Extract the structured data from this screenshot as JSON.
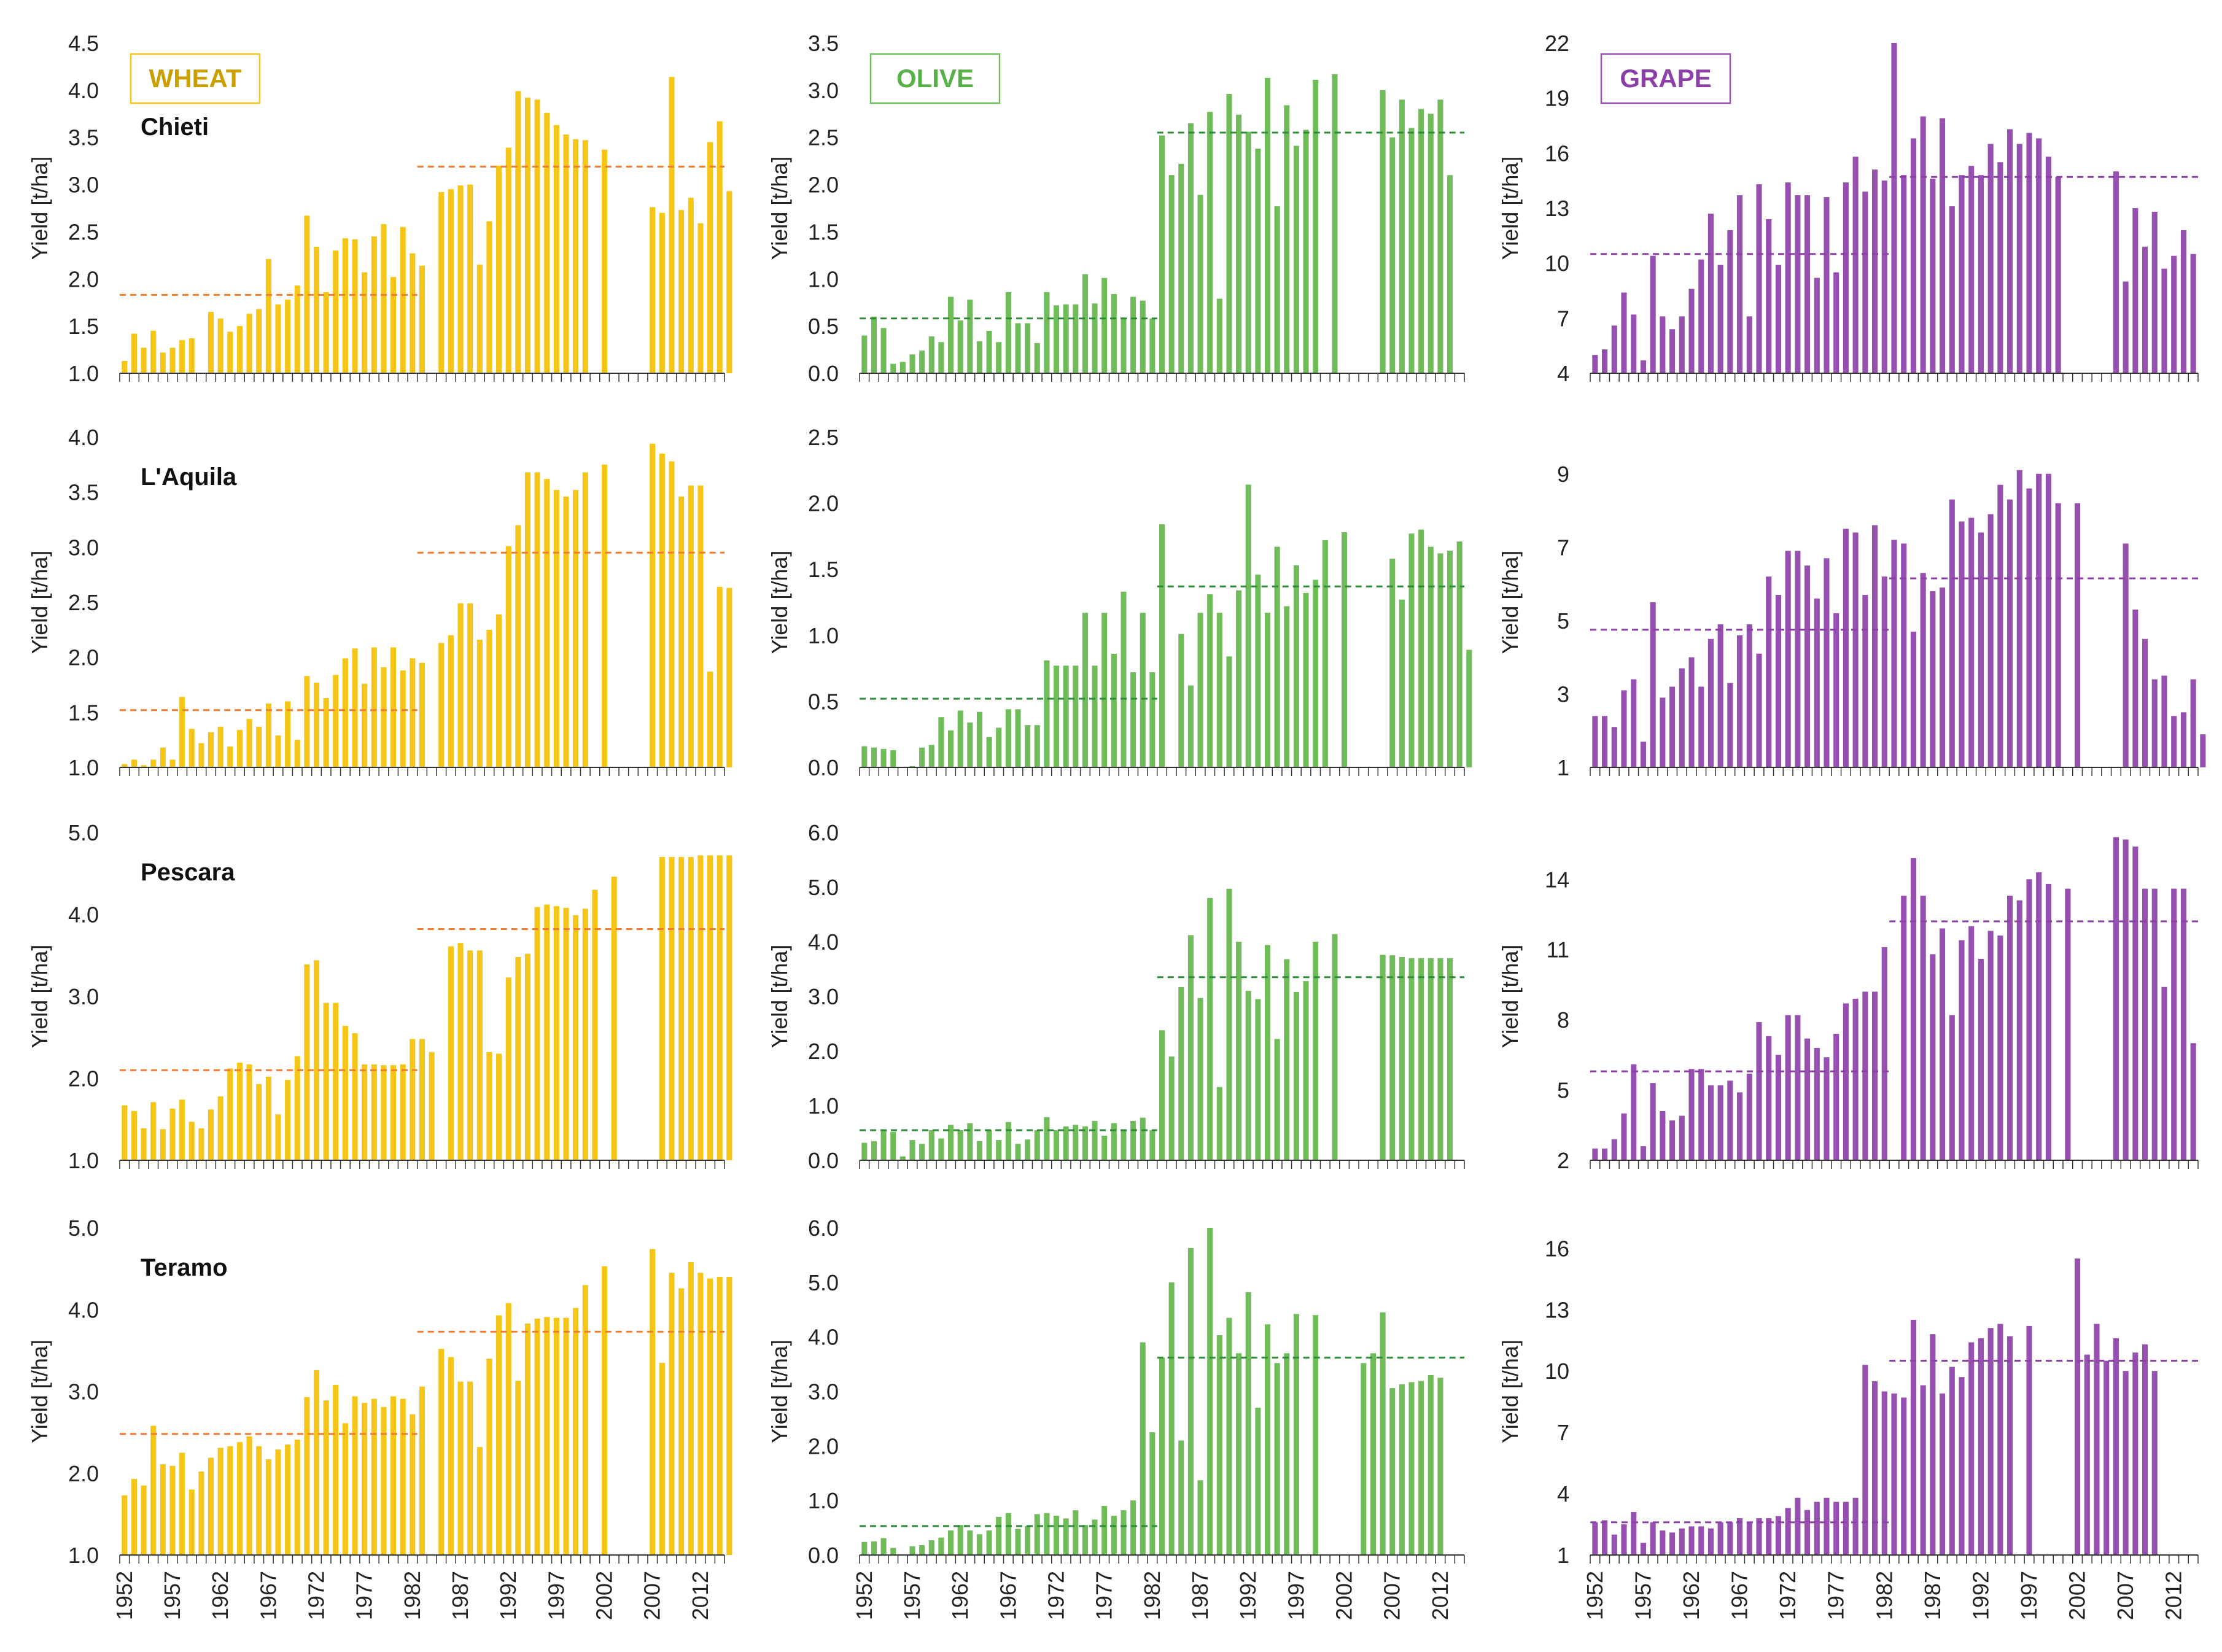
{
  "chart_data": {
    "type": "bar",
    "ylabel": "Yield [t/ha]",
    "x_tick_labels": [
      "1952",
      "1957",
      "1962",
      "1967",
      "1972",
      "1977",
      "1982",
      "1987",
      "1992",
      "1997",
      "2002",
      "2007",
      "2012"
    ],
    "years_first": 1952,
    "years_last": 2014,
    "crops": [
      {
        "name": "WHEAT",
        "color": "#F5C518",
        "mean_color": "#EE7D31",
        "label_color": "#C9A000"
      },
      {
        "name": "OLIVE",
        "color": "#70BC5B",
        "mean_color": "#2E8B37",
        "label_color": "#58B048"
      },
      {
        "name": "GRAPE",
        "color": "#9550B0",
        "mean_color": "#8B3FA7",
        "label_color": "#8B3FA7"
      }
    ],
    "provinces": [
      "Chieti",
      "L'Aquila",
      "Pescara",
      "Teramo"
    ],
    "panels": [
      {
        "crop": "WHEAT",
        "province": "Chieti",
        "ylim": [
          1.0,
          4.5
        ],
        "yticks": [
          "1.0",
          "1.5",
          "2.0",
          "2.5",
          "3.0",
          "3.5",
          "4.0",
          "4.5"
        ],
        "means": [
          1.83,
          3.19
        ],
        "values": [
          1.13,
          1.42,
          1.27,
          1.45,
          1.22,
          1.27,
          1.35,
          1.37,
          null,
          1.65,
          1.58,
          1.44,
          1.5,
          1.63,
          1.68,
          2.21,
          1.73,
          1.78,
          1.93,
          2.67,
          2.34,
          1.86,
          2.3,
          2.43,
          2.42,
          2.07,
          2.45,
          2.58,
          2.02,
          2.55,
          2.27,
          2.14,
          null,
          2.92,
          2.95,
          2.99,
          3.0,
          2.15,
          2.61,
          3.2,
          3.39,
          3.99,
          3.92,
          3.9,
          3.76,
          3.63,
          3.53,
          3.48,
          3.47,
          null,
          3.37,
          null,
          null,
          null,
          null,
          2.76,
          2.7,
          4.14,
          2.73,
          2.86,
          2.59,
          3.45,
          3.67,
          2.93
        ]
      },
      {
        "crop": "OLIVE",
        "province": "Chieti",
        "ylim": [
          0.0,
          3.5
        ],
        "yticks": [
          "0.0",
          "0.5",
          "1.0",
          "1.5",
          "2.0",
          "2.5",
          "3.0",
          "3.5"
        ],
        "means": [
          0.58,
          2.55
        ],
        "values": [
          0.4,
          0.6,
          0.48,
          0.1,
          0.12,
          0.2,
          0.24,
          0.39,
          0.33,
          0.81,
          0.56,
          0.78,
          0.34,
          0.45,
          0.33,
          0.86,
          0.53,
          0.53,
          0.32,
          0.86,
          0.72,
          0.73,
          0.73,
          1.05,
          0.74,
          1.01,
          0.84,
          0.59,
          0.81,
          0.77,
          0.58,
          2.52,
          2.1,
          2.22,
          2.65,
          1.89,
          2.77,
          0.79,
          2.96,
          2.74,
          2.56,
          2.38,
          3.13,
          1.77,
          2.84,
          2.41,
          2.58,
          3.11,
          null,
          3.17,
          null,
          null,
          null,
          null,
          3.0,
          2.5,
          2.9,
          2.6,
          2.8,
          2.75,
          2.9,
          2.1
        ]
      },
      {
        "crop": "GRAPE",
        "province": "Chieti",
        "ylim": [
          4,
          22
        ],
        "yticks": [
          "4",
          "7",
          "10",
          "13",
          "16",
          "19",
          "22"
        ],
        "means": [
          10.5,
          14.7
        ],
        "values": [
          5.0,
          5.3,
          6.6,
          8.4,
          7.2,
          4.7,
          10.4,
          7.1,
          6.4,
          7.1,
          8.6,
          10.2,
          12.7,
          9.9,
          11.8,
          13.7,
          7.1,
          14.3,
          12.4,
          9.9,
          14.4,
          13.7,
          13.7,
          9.2,
          13.6,
          9.5,
          14.4,
          15.8,
          13.9,
          15.1,
          14.5,
          22.0,
          14.8,
          16.8,
          18.0,
          14.6,
          17.9,
          13.1,
          14.8,
          15.3,
          14.8,
          16.5,
          15.5,
          17.3,
          16.5,
          17.1,
          16.8,
          15.8,
          14.7,
          null,
          null,
          null,
          null,
          null,
          15.0,
          9.0,
          13.0,
          10.9,
          12.8,
          9.7,
          10.4,
          11.8,
          10.5
        ]
      },
      {
        "crop": "WHEAT",
        "province": "L'Aquila",
        "ylim": [
          1.0,
          4.0
        ],
        "yticks": [
          "1.0",
          "1.5",
          "2.0",
          "2.5",
          "3.0",
          "3.5",
          "4.0"
        ],
        "means": [
          1.52,
          2.95
        ],
        "values": [
          1.03,
          1.07,
          1.02,
          1.07,
          1.18,
          1.07,
          1.64,
          1.35,
          1.22,
          1.32,
          1.37,
          1.19,
          1.34,
          1.44,
          1.37,
          1.58,
          1.29,
          1.6,
          1.25,
          1.83,
          1.77,
          1.63,
          1.84,
          1.99,
          2.08,
          1.76,
          2.09,
          1.91,
          2.09,
          1.88,
          1.99,
          1.95,
          null,
          2.13,
          2.2,
          2.49,
          2.49,
          2.16,
          2.25,
          2.39,
          3.01,
          3.2,
          3.68,
          3.68,
          3.62,
          3.52,
          3.46,
          3.52,
          3.68,
          null,
          3.75,
          null,
          null,
          null,
          null,
          3.94,
          3.85,
          3.78,
          3.46,
          3.56,
          3.56,
          1.87,
          2.64,
          2.63
        ]
      },
      {
        "crop": "OLIVE",
        "province": "L'Aquila",
        "ylim": [
          0.0,
          2.5
        ],
        "yticks": [
          "0.0",
          "0.5",
          "1.0",
          "1.5",
          "2.0",
          "2.5"
        ],
        "means": [
          0.52,
          1.37
        ],
        "values": [
          0.16,
          0.15,
          0.14,
          0.13,
          null,
          0.01,
          0.15,
          0.17,
          0.38,
          0.28,
          0.43,
          0.34,
          0.42,
          0.23,
          0.3,
          0.44,
          0.44,
          0.32,
          0.32,
          0.81,
          0.77,
          0.77,
          0.77,
          1.17,
          0.77,
          1.17,
          0.86,
          1.33,
          0.72,
          1.17,
          0.72,
          1.84,
          null,
          1.01,
          0.62,
          1.17,
          1.31,
          1.17,
          0.84,
          1.34,
          2.14,
          1.46,
          1.17,
          1.67,
          1.22,
          1.53,
          1.32,
          1.42,
          1.72,
          null,
          1.78,
          null,
          null,
          null,
          null,
          1.58,
          1.27,
          1.77,
          1.8,
          1.67,
          1.62,
          1.64,
          1.71,
          0.89
        ]
      },
      {
        "crop": "GRAPE",
        "province": "L'Aquila",
        "ylim": [
          1,
          10
        ],
        "yticks": [
          "1",
          "3",
          "5",
          "7",
          "9"
        ],
        "means": [
          4.75,
          6.15
        ],
        "values": [
          2.4,
          2.4,
          2.1,
          3.1,
          3.4,
          1.7,
          5.5,
          2.9,
          3.2,
          3.7,
          4.0,
          3.2,
          4.5,
          4.9,
          3.3,
          4.6,
          4.9,
          4.1,
          6.2,
          5.7,
          6.9,
          6.9,
          6.5,
          5.6,
          6.7,
          5.2,
          7.5,
          7.4,
          5.7,
          7.6,
          6.2,
          7.2,
          7.1,
          4.7,
          6.3,
          5.8,
          5.9,
          8.3,
          7.7,
          7.8,
          7.4,
          7.9,
          8.7,
          8.3,
          9.1,
          8.6,
          9.0,
          9.0,
          8.2,
          null,
          8.2,
          null,
          null,
          null,
          null,
          7.1,
          5.3,
          4.5,
          3.4,
          3.5,
          2.4,
          2.5,
          3.4,
          1.9
        ]
      },
      {
        "crop": "WHEAT",
        "province": "Pescara",
        "ylim": [
          1.0,
          5.0
        ],
        "yticks": [
          "1.0",
          "2.0",
          "3.0",
          "4.0",
          "5.0"
        ],
        "means": [
          2.1,
          3.82
        ],
        "values": [
          1.67,
          1.6,
          1.39,
          1.71,
          1.38,
          1.63,
          1.74,
          1.47,
          1.39,
          1.62,
          1.78,
          2.12,
          2.19,
          2.17,
          1.93,
          2.02,
          1.56,
          1.98,
          2.27,
          3.39,
          3.44,
          2.92,
          2.92,
          2.64,
          2.55,
          2.17,
          2.17,
          2.16,
          2.16,
          2.17,
          2.48,
          2.48,
          2.32,
          null,
          3.61,
          3.65,
          3.56,
          3.56,
          2.32,
          2.3,
          3.23,
          3.48,
          3.52,
          4.09,
          4.12,
          4.1,
          4.08,
          3.99,
          4.07,
          4.3,
          null,
          4.46,
          null,
          null,
          null,
          null,
          4.7,
          4.7,
          4.7,
          4.7,
          4.72,
          4.72,
          4.72,
          4.72
        ]
      },
      {
        "crop": "OLIVE",
        "province": "Pescara",
        "ylim": [
          0.0,
          6.0
        ],
        "yticks": [
          "0.0",
          "1.0",
          "2.0",
          "3.0",
          "4.0",
          "5.0",
          "6.0"
        ],
        "means": [
          0.55,
          3.35
        ],
        "values": [
          0.32,
          0.35,
          0.55,
          0.52,
          0.07,
          0.37,
          0.3,
          0.55,
          0.4,
          0.65,
          0.55,
          0.68,
          0.35,
          0.55,
          0.37,
          0.7,
          0.3,
          0.38,
          0.55,
          0.79,
          0.55,
          0.62,
          0.65,
          0.62,
          0.72,
          0.45,
          0.68,
          0.55,
          0.72,
          0.78,
          0.55,
          2.38,
          1.9,
          3.17,
          4.12,
          2.97,
          4.8,
          1.34,
          4.97,
          4.0,
          3.1,
          2.95,
          3.94,
          2.22,
          3.68,
          3.08,
          3.28,
          4.0,
          null,
          4.14,
          null,
          null,
          null,
          null,
          3.76,
          3.75,
          3.72,
          3.7,
          3.7,
          3.7,
          3.7,
          3.7
        ]
      },
      {
        "crop": "GRAPE",
        "province": "Pescara",
        "ylim": [
          2,
          16
        ],
        "yticks": [
          "2",
          "5",
          "8",
          "11",
          "14"
        ],
        "means": [
          5.8,
          12.2
        ],
        "values": [
          2.5,
          2.5,
          2.9,
          4.0,
          6.1,
          2.6,
          5.3,
          4.1,
          3.7,
          3.9,
          5.9,
          5.9,
          5.2,
          5.2,
          5.4,
          4.9,
          5.7,
          7.9,
          7.3,
          6.5,
          8.2,
          8.2,
          7.2,
          6.8,
          6.4,
          7.4,
          8.7,
          8.9,
          9.2,
          9.2,
          11.1,
          null,
          13.3,
          14.9,
          13.3,
          10.8,
          11.9,
          8.2,
          11.4,
          12.0,
          10.6,
          11.8,
          11.6,
          13.3,
          13.1,
          14.0,
          14.3,
          13.8,
          null,
          13.6,
          null,
          null,
          null,
          null,
          15.8,
          15.7,
          15.4,
          13.6,
          13.6,
          9.4,
          13.6,
          13.6,
          7.0
        ]
      },
      {
        "crop": "WHEAT",
        "province": "Teramo",
        "ylim": [
          1.0,
          5.0
        ],
        "yticks": [
          "1.0",
          "2.0",
          "3.0",
          "4.0",
          "5.0"
        ],
        "means": [
          2.48,
          3.73
        ],
        "values": [
          1.73,
          1.93,
          1.85,
          2.58,
          2.11,
          2.09,
          2.25,
          1.8,
          2.02,
          2.19,
          2.31,
          2.33,
          2.38,
          2.45,
          2.33,
          2.17,
          2.29,
          2.35,
          2.41,
          2.93,
          3.26,
          2.89,
          3.08,
          2.61,
          2.94,
          2.86,
          2.91,
          2.81,
          2.94,
          2.91,
          2.72,
          3.06,
          null,
          3.52,
          3.42,
          3.12,
          3.12,
          2.32,
          3.4,
          3.93,
          4.08,
          3.13,
          3.83,
          3.89,
          3.91,
          3.9,
          3.9,
          4.02,
          4.3,
          null,
          4.53,
          null,
          null,
          null,
          null,
          4.74,
          3.35,
          4.45,
          4.26,
          4.58,
          4.45,
          4.38,
          4.4,
          4.4
        ]
      },
      {
        "crop": "OLIVE",
        "province": "Teramo",
        "ylim": [
          0.0,
          6.0
        ],
        "yticks": [
          "0.0",
          "1.0",
          "2.0",
          "3.0",
          "4.0",
          "5.0",
          "6.0"
        ],
        "means": [
          0.53,
          3.62
        ],
        "values": [
          0.24,
          0.25,
          0.31,
          0.13,
          0.01,
          0.16,
          0.18,
          0.27,
          0.32,
          0.45,
          0.55,
          0.45,
          0.38,
          0.45,
          0.7,
          0.77,
          0.48,
          0.53,
          0.75,
          0.77,
          0.72,
          0.67,
          0.82,
          0.55,
          0.65,
          0.9,
          0.72,
          0.82,
          1.0,
          3.9,
          2.25,
          3.62,
          5.0,
          2.1,
          5.63,
          1.37,
          6.0,
          4.03,
          4.35,
          3.7,
          4.82,
          2.7,
          4.23,
          3.52,
          3.7,
          4.42,
          null,
          4.4,
          null,
          null,
          null,
          null,
          3.52,
          3.7,
          4.45,
          3.06,
          3.13,
          3.17,
          3.19,
          3.3,
          3.25
        ]
      },
      {
        "crop": "GRAPE",
        "province": "Teramo",
        "ylim": [
          1,
          17
        ],
        "yticks": [
          "1",
          "4",
          "7",
          "10",
          "13",
          "16"
        ],
        "means": [
          2.6,
          10.5
        ],
        "values": [
          2.6,
          2.7,
          2.0,
          2.5,
          3.1,
          1.6,
          2.6,
          2.2,
          2.1,
          2.3,
          2.4,
          2.4,
          2.3,
          2.6,
          2.6,
          2.8,
          2.6,
          2.8,
          2.8,
          2.9,
          3.3,
          3.8,
          3.2,
          3.6,
          3.8,
          3.6,
          3.6,
          3.8,
          10.3,
          9.5,
          9.0,
          8.9,
          8.7,
          12.5,
          9.3,
          11.8,
          8.9,
          10.2,
          9.7,
          11.4,
          11.6,
          12.1,
          12.3,
          11.7,
          null,
          12.2,
          null,
          null,
          null,
          null,
          15.5,
          10.8,
          12.3,
          10.5,
          11.6,
          10.0,
          10.9,
          11.3,
          10.0
        ]
      }
    ]
  }
}
